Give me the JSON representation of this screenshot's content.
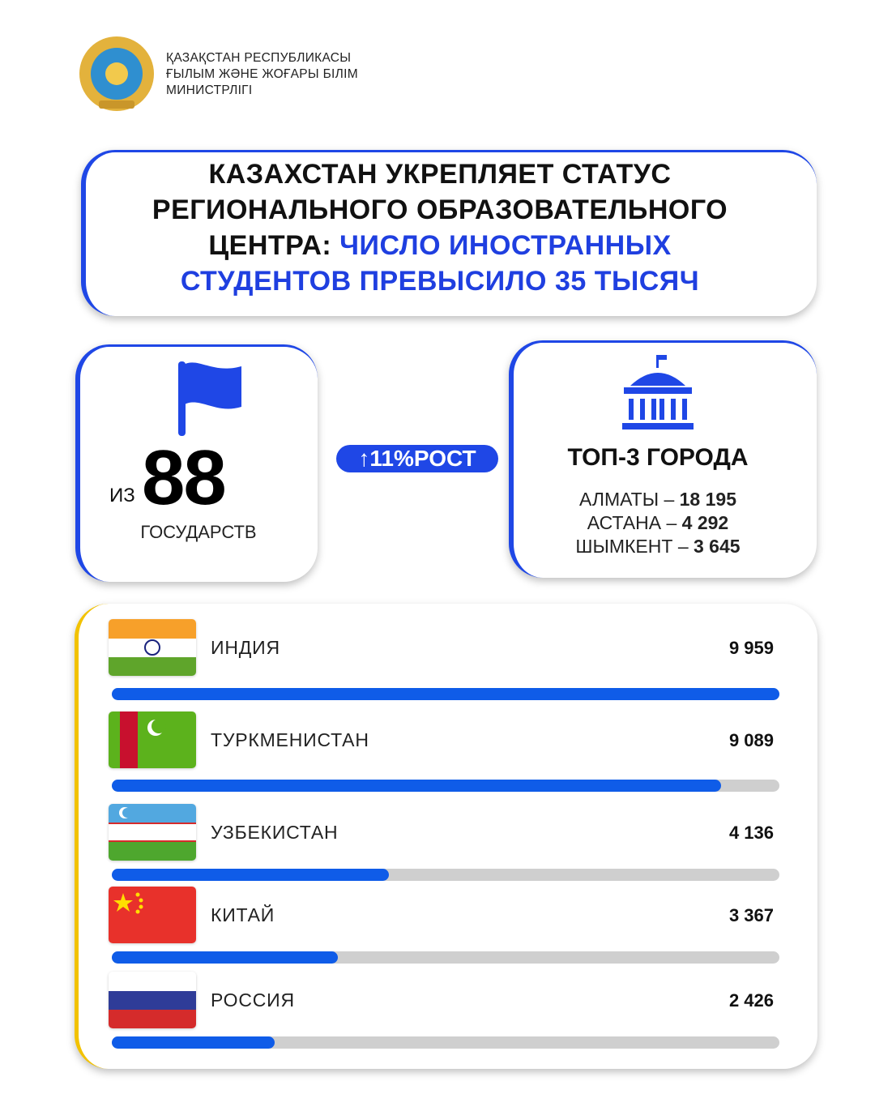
{
  "header": {
    "lines": [
      "ҚАЗАҚСТАН РЕСПУБЛИКАСЫ",
      "ҒЫЛЫМ ЖӘНЕ ЖОҒАРЫ БІЛІМ",
      "МИНИСТРЛІГІ"
    ]
  },
  "title": {
    "text": [
      "КАЗАХСТАН УКРЕПЛЯЕТ СТАТУС",
      "РЕГИОНАЛЬНОГО ОБРАЗОВАТЕЛЬНОГО",
      "ЦЕНТРА:"
    ],
    "highlight": [
      "ЧИСЛО ИНОСТРАННЫХ",
      "СТУДЕНТОВ ПРЕВЫСИЛО 35 ТЫСЯЧ"
    ]
  },
  "states": {
    "prefix": "ИЗ",
    "count": 88,
    "label": "ГОСУДАРСТВ"
  },
  "growth": {
    "value": "11%",
    "label": "РОСТ"
  },
  "cities": {
    "title": "ТОП-3 ГОРОДА",
    "separator": "–",
    "names": [
      "АЛМАТЫ",
      "АСТАНА",
      "ШЫМКЕНТ"
    ],
    "values": [
      18195,
      4292,
      3645
    ],
    "value_labels": [
      "18 195",
      "4 292",
      "3 645"
    ]
  },
  "countries": {
    "names": [
      "ИНДИЯ",
      "ТУРКМЕНИСТАН",
      "УЗБЕКИСТАН",
      "КИТАЙ",
      "РОССИЯ"
    ],
    "values": [
      9959,
      9089,
      4136,
      3367,
      2426
    ],
    "value_labels": [
      "9 959",
      "9 089",
      "4 136",
      "3 367",
      "2 426"
    ]
  }
}
